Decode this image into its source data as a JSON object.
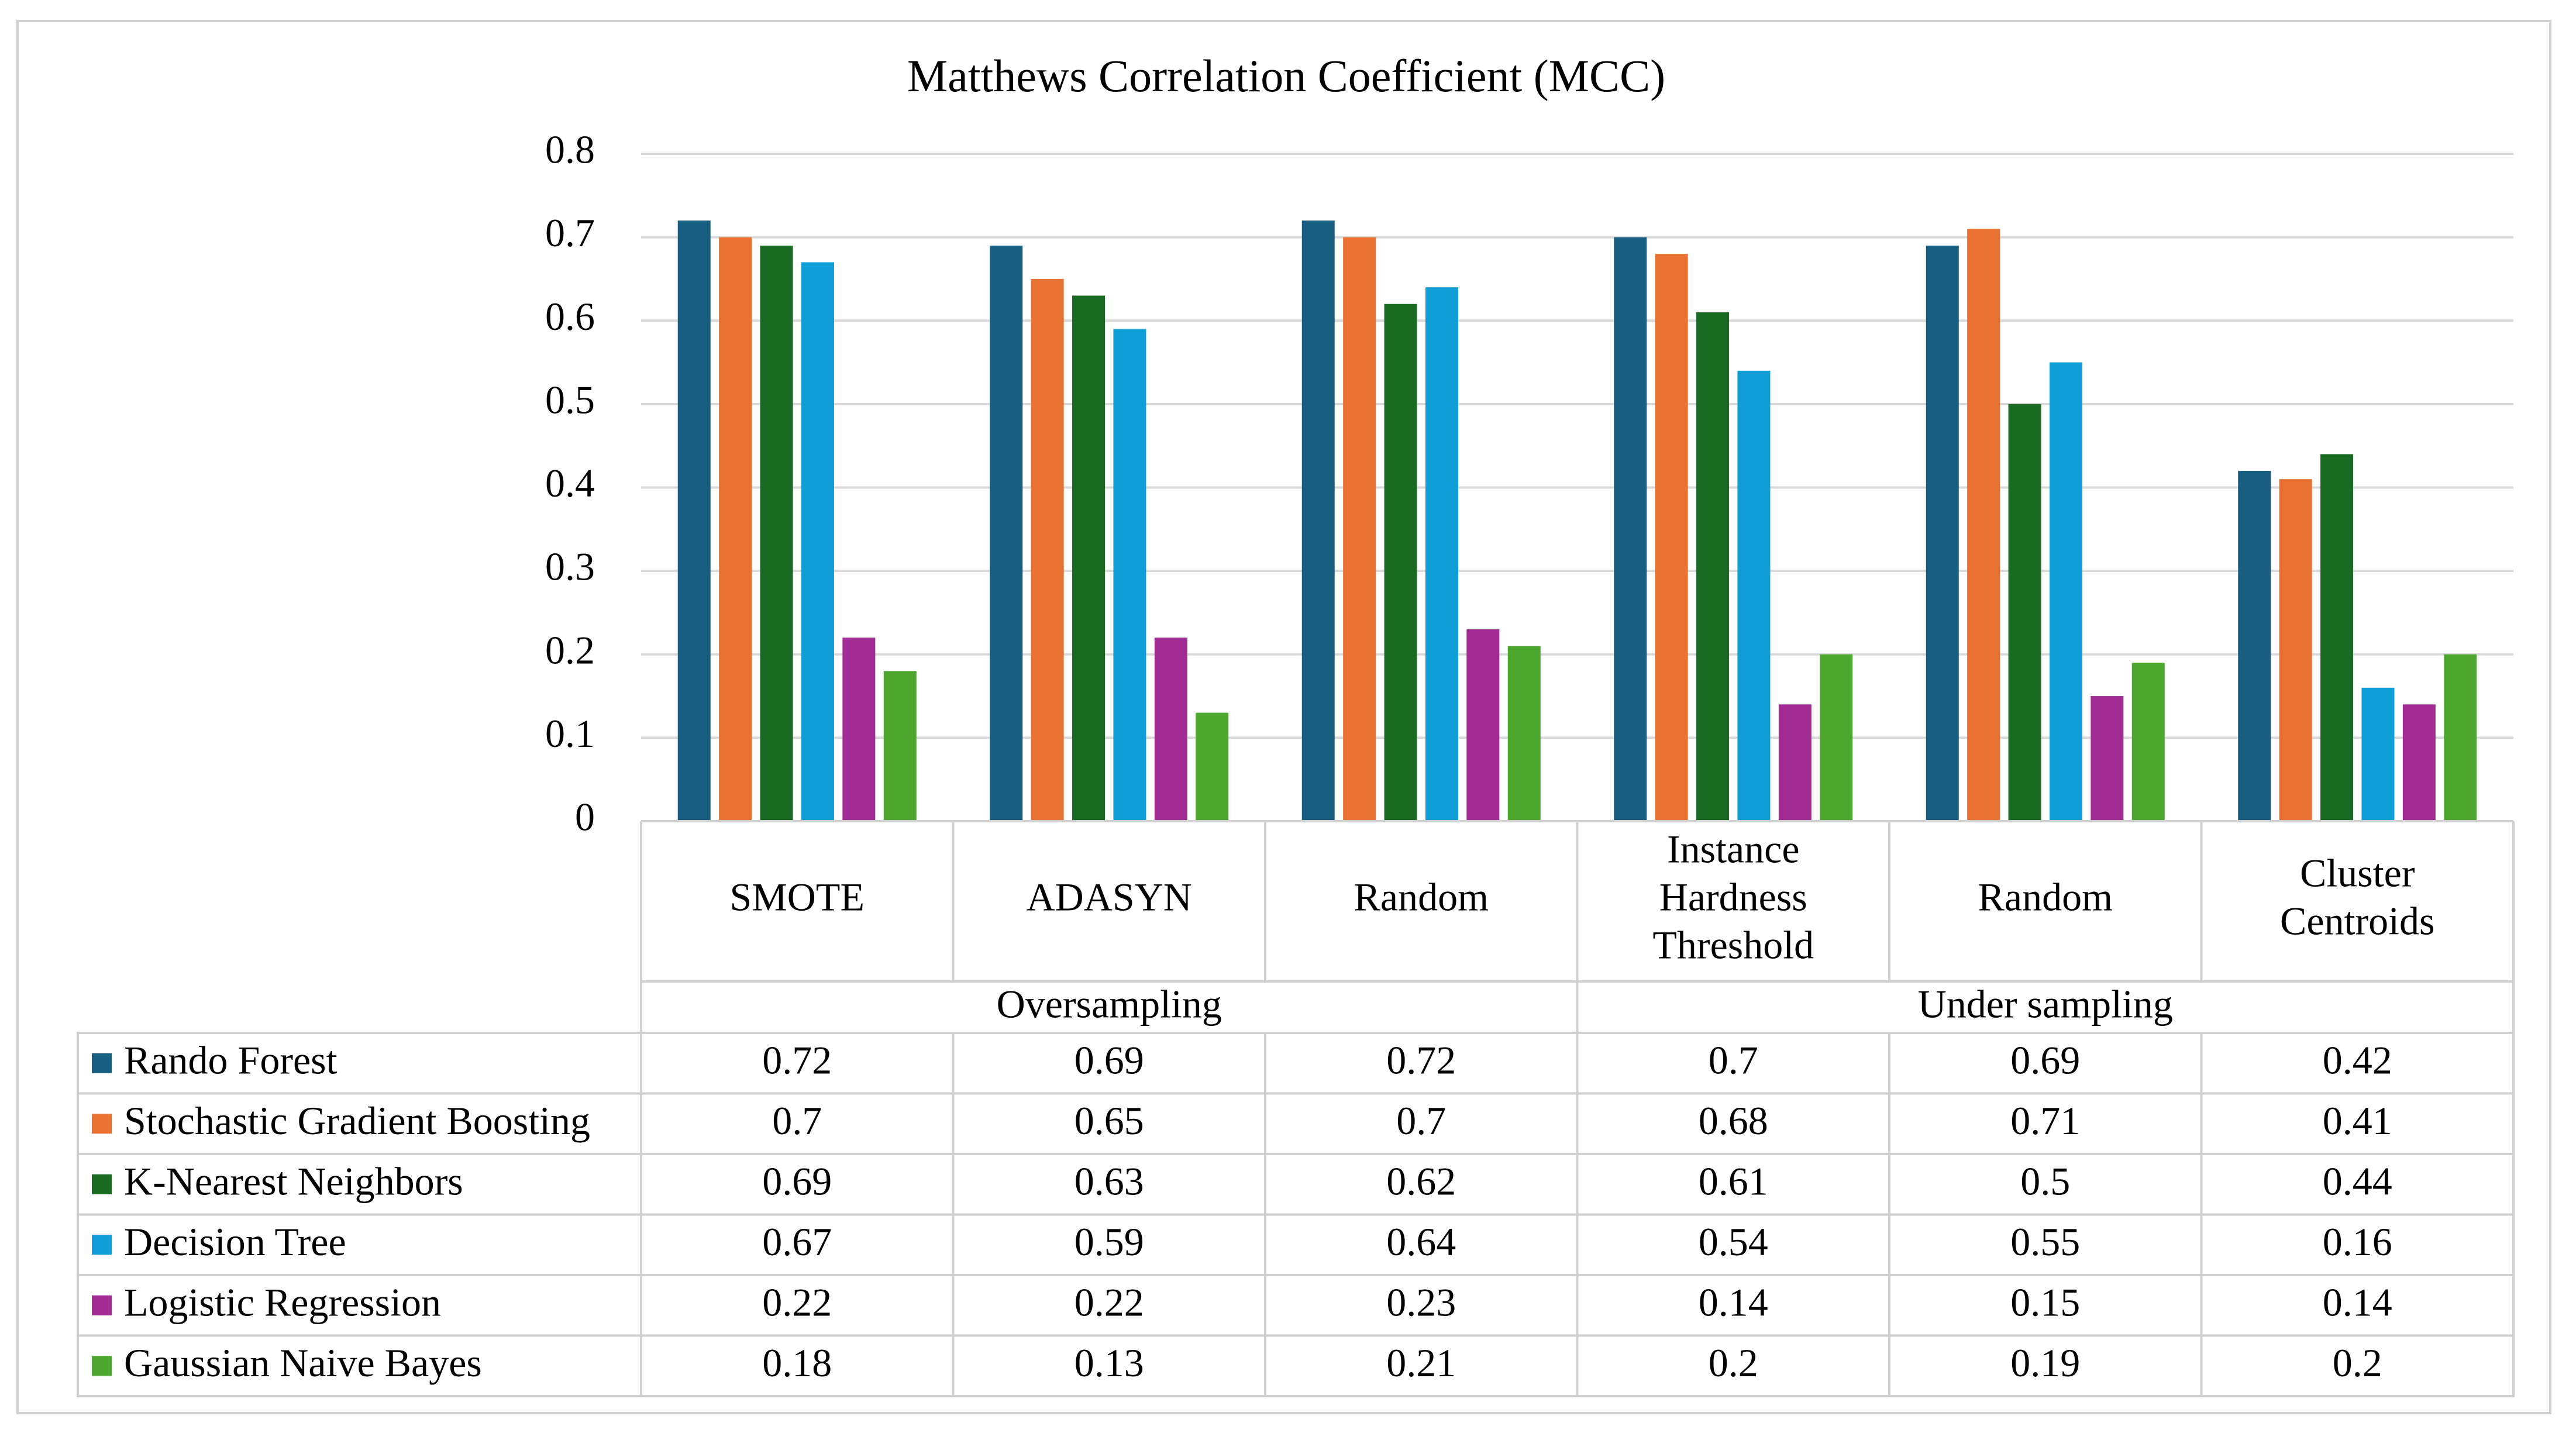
{
  "chart_data": {
    "type": "bar",
    "title": "Matthews Correlation Coefficient (MCC)",
    "ylim": [
      0,
      0.8
    ],
    "yticks": [
      "0",
      "0.1",
      "0.2",
      "0.3",
      "0.4",
      "0.5",
      "0.6",
      "0.7",
      "0.8"
    ],
    "grid": true,
    "legend_placement": "left of data table",
    "category_labels": [
      [
        "SMOTE"
      ],
      [
        "ADASYN"
      ],
      [
        "Random"
      ],
      [
        "Instance",
        "Hardness",
        "Threshold"
      ],
      [
        "Random"
      ],
      [
        "Cluster",
        "Centroids"
      ]
    ],
    "groups": [
      {
        "label": "Oversampling",
        "span": 3
      },
      {
        "label": "Under sampling",
        "span": 3
      }
    ],
    "series": [
      {
        "name": "Rando Forest",
        "color": "#175e80",
        "values": [
          0.72,
          0.69,
          0.72,
          0.7,
          0.69,
          0.42
        ],
        "labels": [
          "0.72",
          "0.69",
          "0.72",
          "0.7",
          "0.69",
          "0.42"
        ]
      },
      {
        "name": "Stochastic Gradient Boosting",
        "color": "#e97132",
        "values": [
          0.7,
          0.65,
          0.7,
          0.68,
          0.71,
          0.41
        ],
        "labels": [
          "0.7",
          "0.65",
          "0.7",
          "0.68",
          "0.71",
          "0.41"
        ]
      },
      {
        "name": "K-Nearest Neighbors",
        "color": "#196b24",
        "values": [
          0.69,
          0.63,
          0.62,
          0.61,
          0.5,
          0.44
        ],
        "labels": [
          "0.69",
          "0.63",
          "0.62",
          "0.61",
          "0.5",
          "0.44"
        ]
      },
      {
        "name": "Decision Tree",
        "color": "#0f9ed5",
        "values": [
          0.67,
          0.59,
          0.64,
          0.54,
          0.55,
          0.16
        ],
        "labels": [
          "0.67",
          "0.59",
          "0.64",
          "0.54",
          "0.55",
          "0.16"
        ]
      },
      {
        "name": "Logistic Regression",
        "color": "#a02b93",
        "values": [
          0.22,
          0.22,
          0.23,
          0.14,
          0.15,
          0.14
        ],
        "labels": [
          "0.22",
          "0.22",
          "0.23",
          "0.14",
          "0.15",
          "0.14"
        ]
      },
      {
        "name": "Gaussian Naive Bayes",
        "color": "#4ea72e",
        "values": [
          0.18,
          0.13,
          0.21,
          0.2,
          0.19,
          0.2
        ],
        "labels": [
          "0.18",
          "0.13",
          "0.21",
          "0.2",
          "0.19",
          "0.2"
        ]
      }
    ]
  }
}
